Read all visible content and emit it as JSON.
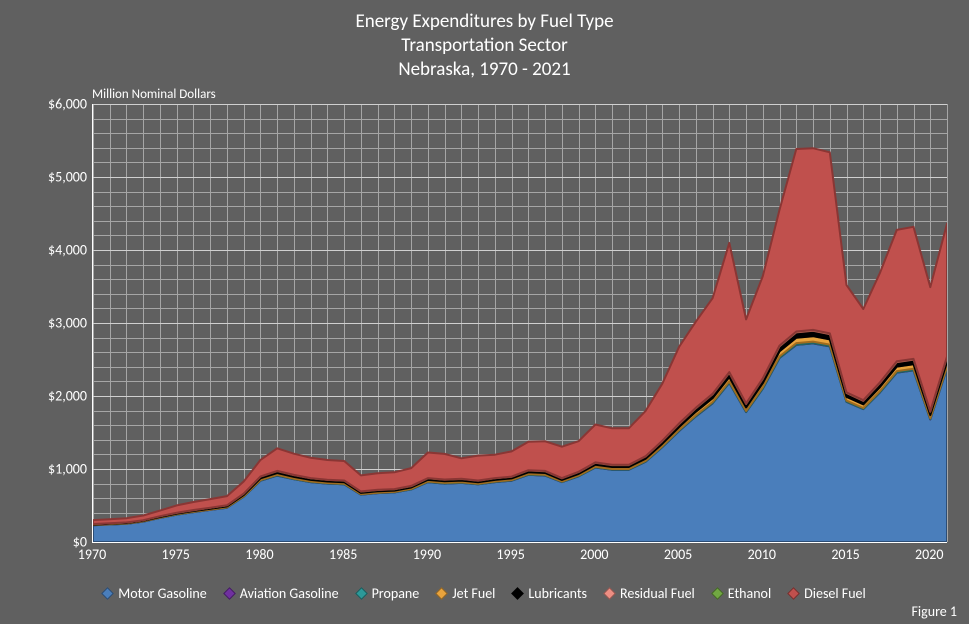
{
  "chart": {
    "type": "area",
    "title_line1": "Energy Expenditures by Fuel Type",
    "title_line2": "Transportation Sector",
    "title_line3": "Nebraska, 1970 - 2021",
    "y_axis_title": "Million Nominal Dollars",
    "figure_label": "Figure 1",
    "background_color": "#606060",
    "grid_color": "#a6a6a6",
    "axis_color": "#ffffff",
    "text_color": "#ffffff",
    "title_fontsize": 19,
    "label_fontsize": 14,
    "xlim": [
      1970,
      2021
    ],
    "ylim": [
      0,
      6000
    ],
    "ytick_step": 1000,
    "ytick_labels": [
      "$0",
      "$1,000",
      "$2,000",
      "$3,000",
      "$4,000",
      "$5,000",
      "$6,000"
    ],
    "xtick_step": 5,
    "xtick_labels": [
      "1970",
      "1975",
      "1980",
      "1985",
      "1990",
      "1995",
      "2000",
      "2005",
      "2010",
      "2015",
      "2020"
    ],
    "minor_x_grid_every": 1,
    "minor_y_grid_every": 200,
    "series": [
      {
        "name": "Motor Gasoline",
        "color": "#4a7ebb",
        "edge": "#2c4d75",
        "data": [
          230,
          240,
          250,
          280,
          330,
          375,
          410,
          440,
          470,
          620,
          840,
          910,
          860,
          820,
          800,
          790,
          650,
          670,
          680,
          720,
          820,
          800,
          810,
          790,
          820,
          840,
          920,
          910,
          820,
          900,
          1020,
          990,
          990,
          1100,
          1300,
          1520,
          1720,
          1900,
          2180,
          1780,
          2100,
          2520,
          2700,
          2720,
          2680,
          1920,
          1820,
          2050,
          2320,
          2350,
          1680,
          2380
        ]
      },
      {
        "name": "Aviation Gasoline",
        "color": "#7030a0",
        "edge": "#4a2068",
        "data": [
          1,
          1,
          1,
          1,
          1,
          1,
          1,
          1,
          1,
          1,
          2,
          2,
          2,
          2,
          2,
          2,
          1,
          1,
          1,
          1,
          2,
          2,
          2,
          2,
          2,
          2,
          2,
          2,
          2,
          2,
          2,
          2,
          2,
          2,
          2,
          3,
          3,
          3,
          3,
          2,
          3,
          3,
          3,
          3,
          3,
          2,
          2,
          2,
          3,
          3,
          2,
          3
        ]
      },
      {
        "name": "Propane",
        "color": "#2c9999",
        "edge": "#1d6565",
        "data": [
          2,
          2,
          2,
          2,
          3,
          3,
          3,
          3,
          4,
          5,
          7,
          8,
          7,
          7,
          6,
          6,
          5,
          5,
          5,
          6,
          7,
          7,
          7,
          6,
          7,
          7,
          8,
          8,
          7,
          7,
          8,
          8,
          8,
          9,
          10,
          12,
          14,
          15,
          17,
          14,
          17,
          20,
          22,
          22,
          21,
          15,
          14,
          16,
          18,
          19,
          13,
          19
        ]
      },
      {
        "name": "Jet Fuel",
        "color": "#e8a33d",
        "edge": "#a06c1f",
        "data": [
          6,
          6,
          7,
          7,
          9,
          10,
          11,
          12,
          13,
          17,
          23,
          25,
          23,
          22,
          21,
          21,
          17,
          18,
          18,
          19,
          22,
          22,
          22,
          21,
          22,
          22,
          25,
          25,
          22,
          24,
          28,
          27,
          27,
          30,
          35,
          41,
          47,
          52,
          59,
          48,
          57,
          68,
          73,
          74,
          72,
          52,
          49,
          55,
          62,
          63,
          45,
          64
        ]
      },
      {
        "name": "Lubricants",
        "color": "#000000",
        "edge": "#000000",
        "data": [
          6,
          6,
          7,
          7,
          9,
          10,
          11,
          12,
          13,
          17,
          23,
          25,
          23,
          22,
          21,
          21,
          17,
          18,
          18,
          19,
          22,
          22,
          22,
          21,
          22,
          22,
          25,
          25,
          22,
          24,
          28,
          27,
          27,
          30,
          35,
          41,
          47,
          52,
          59,
          48,
          57,
          68,
          73,
          74,
          72,
          52,
          49,
          55,
          62,
          63,
          45,
          64
        ]
      },
      {
        "name": "Residual Fuel",
        "color": "#ed8e83",
        "edge": "#b55a4f",
        "data": [
          1,
          1,
          1,
          1,
          1,
          2,
          2,
          2,
          2,
          3,
          4,
          4,
          4,
          3,
          3,
          3,
          3,
          3,
          3,
          3,
          3,
          3,
          3,
          3,
          3,
          3,
          4,
          4,
          3,
          4,
          4,
          4,
          4,
          5,
          6,
          7,
          7,
          8,
          9,
          7,
          9,
          11,
          12,
          12,
          11,
          8,
          8,
          9,
          10,
          10,
          7,
          10
        ]
      },
      {
        "name": "Ethanol",
        "color": "#71a842",
        "edge": "#4b7128",
        "data": [
          0,
          0,
          0,
          0,
          0,
          0,
          0,
          0,
          0,
          0,
          0,
          0,
          0,
          0,
          0,
          0,
          0,
          0,
          0,
          0,
          0,
          0,
          0,
          0,
          0,
          0,
          0,
          0,
          0,
          0,
          0,
          0,
          0,
          0,
          0,
          0,
          0,
          0,
          0,
          0,
          0,
          0,
          0,
          0,
          0,
          0,
          0,
          0,
          0,
          0,
          0,
          0
        ]
      },
      {
        "name": "Diesel Fuel",
        "color": "#c0504d",
        "edge": "#8a3634",
        "data": [
          54,
          56,
          58,
          65,
          77,
          100,
          110,
          118,
          126,
          166,
          226,
          310,
          291,
          278,
          270,
          267,
          220,
          227,
          230,
          244,
          350,
          351,
          280,
          340,
          320,
          345,
          390,
          405,
          430,
          420,
          520,
          500,
          500,
          620,
          780,
          1050,
          1180,
          1310,
          1770,
          1150,
          1400,
          1860,
          2500,
          2490,
          2480,
          1470,
          1250,
          1500,
          1800,
          1810,
          1700,
          1820
        ]
      }
    ],
    "series_edge_width": 2,
    "years": [
      1970,
      1971,
      1972,
      1973,
      1974,
      1975,
      1976,
      1977,
      1978,
      1979,
      1980,
      1981,
      1982,
      1983,
      1984,
      1985,
      1986,
      1987,
      1988,
      1989,
      1990,
      1991,
      1992,
      1993,
      1994,
      1995,
      1996,
      1997,
      1998,
      1999,
      2000,
      2001,
      2002,
      2003,
      2004,
      2005,
      2006,
      2007,
      2008,
      2009,
      2010,
      2011,
      2012,
      2013,
      2014,
      2015,
      2016,
      2017,
      2018,
      2019,
      2020,
      2021
    ]
  }
}
